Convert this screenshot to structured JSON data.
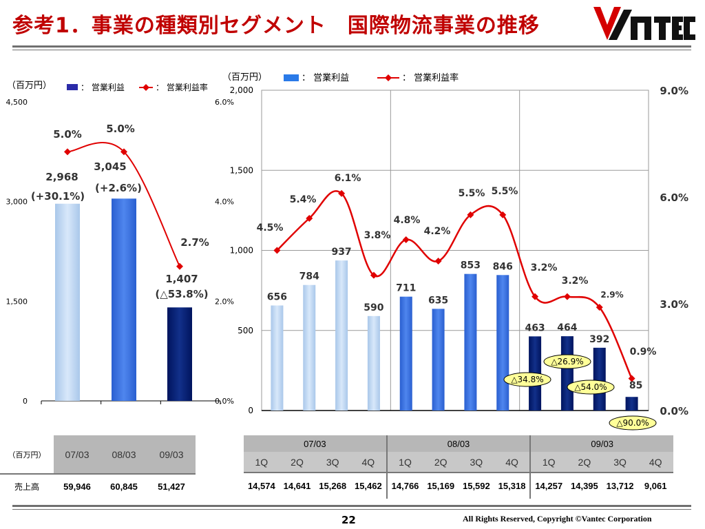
{
  "header": {
    "title": "参考1．事業の種類別セグメント　国際物流事業の推移",
    "logo_text": "VANTEC"
  },
  "footer": {
    "page": "22",
    "copyright": "All Rights Reserved, Copyright ©Vantec Corporation"
  },
  "colors": {
    "bar_light": "#a9c7ea",
    "bar_mid": "#2a5fd0",
    "bar_dark": "#00145e",
    "line": "#e00000",
    "title": "#c00000",
    "callout": "#ffff99"
  },
  "chart_data": [
    {
      "type": "bar",
      "unit_label": "（百万円）",
      "legend": [
        {
          "label": "：  営業利益"
        },
        {
          "label": "：  営業利益率"
        }
      ],
      "categories": [
        "07/03",
        "08/03",
        "09/03"
      ],
      "series": [
        {
          "name": "営業利益",
          "values": [
            2968,
            3045,
            1407
          ]
        },
        {
          "name": "営業利益率",
          "values": [
            5.0,
            5.0,
            2.7
          ],
          "axis": "right"
        }
      ],
      "ylim": [
        0,
        4500
      ],
      "yticks": [
        "0",
        "1,500",
        "3,000",
        "4,500"
      ],
      "y2lim": [
        0,
        6
      ],
      "y2ticks": [
        "0.0%",
        "2.0%",
        "4.0%",
        "6.0%"
      ],
      "value_labels": [
        "2,968",
        "3,045",
        "1,407"
      ],
      "change_labels": [
        "(+30.1%)",
        "(+2.6%)",
        "(△53.8%)"
      ],
      "rate_labels": [
        "5.0%",
        "5.0%",
        "2.7%"
      ]
    },
    {
      "type": "bar",
      "unit_label": "（百万円）",
      "legend": [
        {
          "label": "：  営業利益"
        },
        {
          "label": "：  営業利益率"
        }
      ],
      "groups": [
        "07/03",
        "08/03",
        "09/03"
      ],
      "categories": [
        "1Q",
        "2Q",
        "3Q",
        "4Q",
        "1Q",
        "2Q",
        "3Q",
        "4Q",
        "1Q",
        "2Q",
        "3Q",
        "4Q"
      ],
      "series": [
        {
          "name": "営業利益",
          "values": [
            656,
            784,
            937,
            590,
            711,
            635,
            853,
            846,
            463,
            464,
            392,
            85
          ]
        },
        {
          "name": "営業利益率",
          "values": [
            4.5,
            5.4,
            6.1,
            3.8,
            4.8,
            4.2,
            5.5,
            5.5,
            3.2,
            3.2,
            2.9,
            0.9
          ],
          "axis": "right"
        }
      ],
      "ylim": [
        0,
        2000
      ],
      "yticks": [
        "0",
        "500",
        "1,000",
        "1,500",
        "2,000"
      ],
      "y2lim": [
        0,
        9
      ],
      "y2ticks": [
        "0.0%",
        "3.0%",
        "6.0%",
        "9.0%"
      ],
      "value_labels": [
        "656",
        "784",
        "937",
        "590",
        "711",
        "635",
        "853",
        "846",
        "463",
        "464",
        "392",
        "85"
      ],
      "rate_labels": [
        "4.5%",
        "5.4%",
        "6.1%",
        "3.8%",
        "4.8%",
        "4.2%",
        "5.5%",
        "5.5%",
        "3.2%",
        "3.2%",
        "2.9%",
        "0.9%"
      ],
      "callouts": [
        {
          "index": 8,
          "text": "△34.8%"
        },
        {
          "index": 9,
          "text": "△26.9%"
        },
        {
          "index": 10,
          "text": "△54.0%"
        },
        {
          "index": 11,
          "text": "△90.0%"
        }
      ]
    }
  ],
  "table_left": {
    "unit": "（百万円）",
    "years": [
      "07/03",
      "08/03",
      "09/03"
    ],
    "row_label": "売上高",
    "values": [
      "59,946",
      "60,845",
      "51,427"
    ]
  },
  "table_right": {
    "years": [
      "07/03",
      "08/03",
      "09/03"
    ],
    "quarters": [
      "1Q",
      "2Q",
      "3Q",
      "4Q",
      "1Q",
      "2Q",
      "3Q",
      "4Q",
      "1Q",
      "2Q",
      "3Q",
      "4Q"
    ],
    "values": [
      "14,574",
      "14,641",
      "15,268",
      "15,462",
      "14,766",
      "15,169",
      "15,592",
      "15,318",
      "14,257",
      "14,395",
      "13,712",
      "9,061"
    ]
  }
}
